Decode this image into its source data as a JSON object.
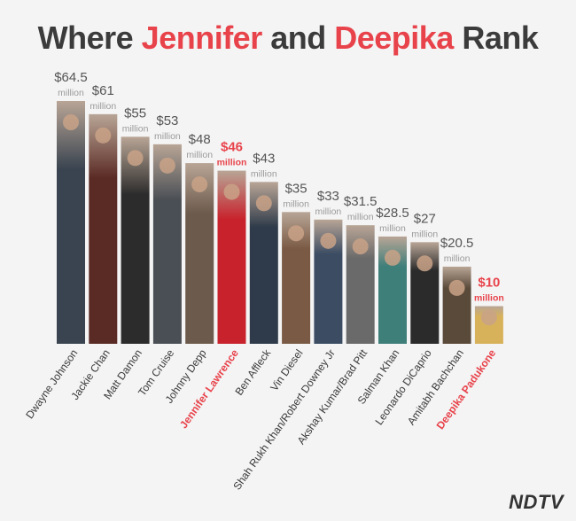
{
  "title": {
    "part1": "Where ",
    "name1": "Jennifer",
    "part2": " and ",
    "name2": "Deepika",
    "part3": " Rank"
  },
  "logo": "NDTV",
  "colors": {
    "highlight": "#e8434b",
    "text": "#3b3b3b",
    "value": "#555555",
    "unit": "#9a9a9a"
  },
  "chart_data": {
    "type": "bar",
    "title": "Where Jennifer and Deepika Rank",
    "value_unit_label": "million",
    "value_prefix": "$",
    "categories": [
      "Dwayne Johnson",
      "Jackie Chan",
      "Matt Damon",
      "Tom Cruise",
      "Johnny Depp",
      "Jennifer Lawrence",
      "Ben Affleck",
      "Vin Diesel",
      "Shah Rukh Khan/Robert Downey Jr",
      "Akshay Kumar/Brad Pitt",
      "Salman Khan",
      "Leonardo DiCaprio",
      "Amitabh Bachchan",
      "Deepika Padukone"
    ],
    "values": [
      64.5,
      61,
      55,
      53,
      48,
      46,
      43,
      35,
      33,
      31.5,
      28.5,
      27,
      20.5,
      10
    ],
    "value_labels": [
      "$64.5",
      "$61",
      "$55",
      "$53",
      "$48",
      "$46",
      "$43",
      "$35",
      "$33",
      "$31.5",
      "$28.5",
      "$27",
      "$20.5",
      "$10"
    ],
    "highlighted": [
      "Jennifer Lawrence",
      "Deepika Padukone"
    ],
    "ylim": [
      0,
      70
    ],
    "bar_fill": "photo of each actor"
  }
}
